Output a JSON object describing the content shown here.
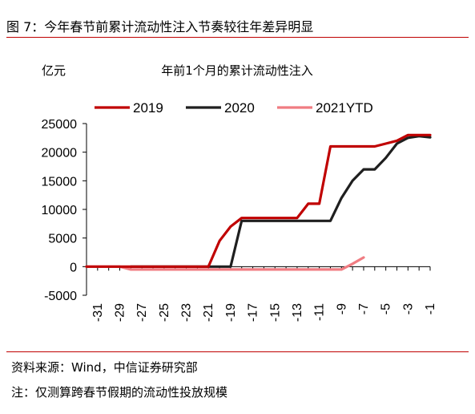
{
  "figure": {
    "title": "图 7：今年春节前累计流动性注入节奏较往年差异明显",
    "source": "资料来源：Wind，中信证券研究部",
    "note": "注：仅测算跨春节假期的流动性投放规模"
  },
  "chart_data": {
    "type": "line",
    "title": "年前1个月的累计流动性注入",
    "ylabel": "亿元",
    "xlabel": "",
    "ylim": [
      -5000,
      25000
    ],
    "yticks": [
      -5000,
      0,
      5000,
      10000,
      15000,
      20000,
      25000
    ],
    "xlim": [
      -32,
      -1
    ],
    "xticks": [
      -31,
      -29,
      -27,
      -25,
      -23,
      -21,
      -19,
      -17,
      -15,
      -13,
      -11,
      -9,
      -7,
      -5,
      -3,
      -1
    ],
    "legend": "top",
    "grid": false,
    "series": [
      {
        "name": "2019",
        "color": "#c00000",
        "points": [
          [
            -32,
            0
          ],
          [
            -31,
            0
          ],
          [
            -30,
            0
          ],
          [
            -29,
            0
          ],
          [
            -28,
            0
          ],
          [
            -27,
            0
          ],
          [
            -26,
            0
          ],
          [
            -25,
            0
          ],
          [
            -24,
            0
          ],
          [
            -23,
            0
          ],
          [
            -22,
            0
          ],
          [
            -21,
            0
          ],
          [
            -20,
            4500
          ],
          [
            -19,
            7000
          ],
          [
            -18,
            8500
          ],
          [
            -17,
            8500
          ],
          [
            -16,
            8500
          ],
          [
            -15,
            8500
          ],
          [
            -14,
            8500
          ],
          [
            -13,
            8500
          ],
          [
            -12,
            11000
          ],
          [
            -11,
            11000
          ],
          [
            -10,
            21000
          ],
          [
            -9,
            21000
          ],
          [
            -8,
            21000
          ],
          [
            -7,
            21000
          ],
          [
            -6,
            21000
          ],
          [
            -5,
            21500
          ],
          [
            -4,
            22000
          ],
          [
            -3,
            23000
          ],
          [
            -2,
            23000
          ],
          [
            -1,
            23000
          ]
        ]
      },
      {
        "name": "2020",
        "color": "#1f1f1f",
        "points": [
          [
            -28,
            0
          ],
          [
            -27,
            0
          ],
          [
            -26,
            0
          ],
          [
            -25,
            0
          ],
          [
            -24,
            0
          ],
          [
            -23,
            0
          ],
          [
            -22,
            0
          ],
          [
            -21,
            0
          ],
          [
            -20,
            0
          ],
          [
            -19,
            0
          ],
          [
            -18,
            8000
          ],
          [
            -17,
            8000
          ],
          [
            -16,
            8000
          ],
          [
            -15,
            8000
          ],
          [
            -14,
            8000
          ],
          [
            -13,
            8000
          ],
          [
            -12,
            8000
          ],
          [
            -11,
            8000
          ],
          [
            -10,
            8000
          ],
          [
            -9,
            12000
          ],
          [
            -8,
            15000
          ],
          [
            -7,
            17000
          ],
          [
            -6,
            17000
          ],
          [
            -5,
            19000
          ],
          [
            -4,
            21500
          ],
          [
            -3,
            22500
          ],
          [
            -2,
            22800
          ],
          [
            -1,
            22600
          ]
        ]
      },
      {
        "name": "2021YTD",
        "color": "#f07c82",
        "points": [
          [
            -32,
            0
          ],
          [
            -31,
            0
          ],
          [
            -30,
            0
          ],
          [
            -29,
            0
          ],
          [
            -28,
            -500
          ],
          [
            -27,
            -500
          ],
          [
            -26,
            -500
          ],
          [
            -25,
            -500
          ],
          [
            -24,
            -500
          ],
          [
            -23,
            -500
          ],
          [
            -22,
            -500
          ],
          [
            -21,
            -500
          ],
          [
            -20,
            -500
          ],
          [
            -19,
            -500
          ],
          [
            -18,
            -500
          ],
          [
            -17,
            -500
          ],
          [
            -16,
            -500
          ],
          [
            -15,
            -500
          ],
          [
            -14,
            -500
          ],
          [
            -13,
            -500
          ],
          [
            -12,
            -500
          ],
          [
            -11,
            -500
          ],
          [
            -10,
            -500
          ],
          [
            -9,
            -500
          ],
          [
            -8,
            500
          ],
          [
            -7,
            1600
          ]
        ]
      }
    ]
  }
}
